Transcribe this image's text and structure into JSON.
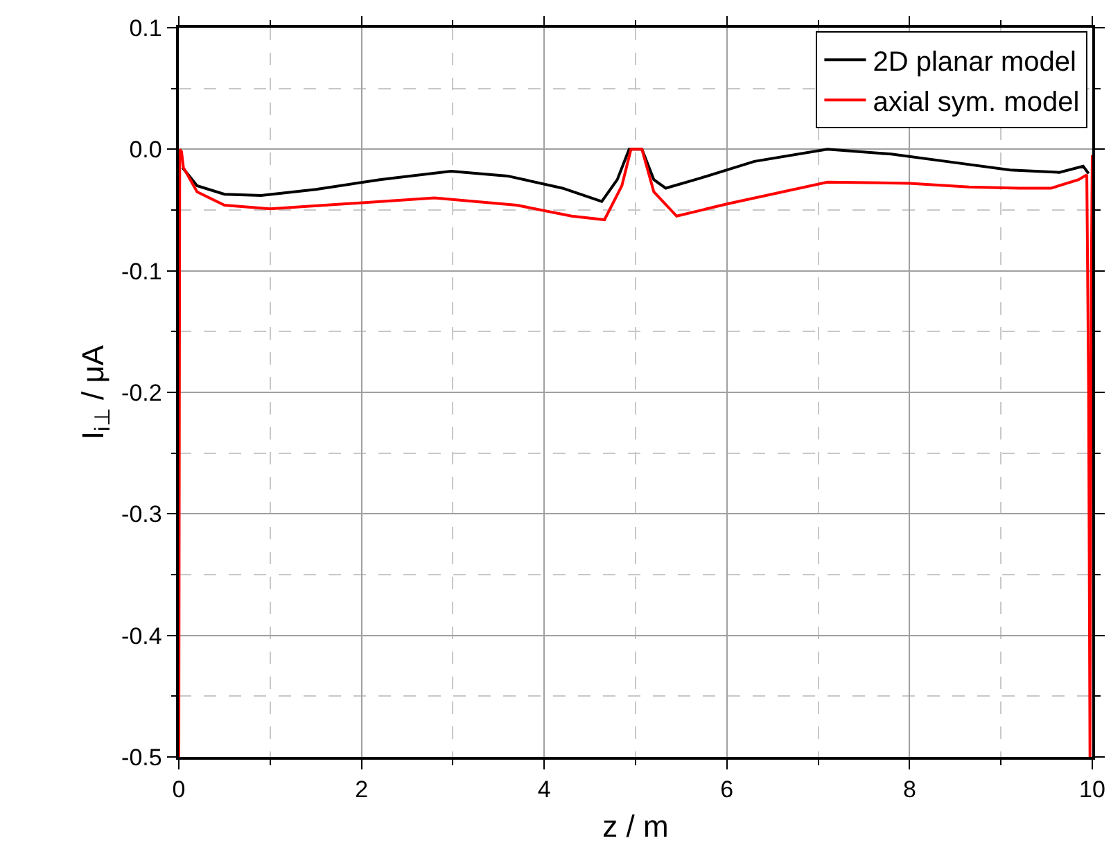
{
  "chart_data": {
    "type": "line",
    "xlabel": "z / m",
    "ylabel": "I$_{i⊥}$ / μA",
    "xlim": [
      0,
      10
    ],
    "xticks": [
      0,
      2,
      4,
      6,
      8,
      10
    ],
    "ylim": [
      -0.5,
      0.1
    ],
    "yticks": [
      {
        "value": -0.5,
        "label": "-0.5"
      },
      {
        "value": -0.4,
        "label": "-0.4"
      },
      {
        "value": -0.3,
        "label": "-0.3"
      },
      {
        "value": -0.2,
        "label": "-0.2"
      },
      {
        "value": -0.1,
        "label": "-0.1"
      },
      {
        "value": 0,
        "label": "0.0"
      },
      {
        "value": 0.1,
        "label": "0.1"
      }
    ],
    "grid": true,
    "legend": "top right",
    "line_style": "solid",
    "marker": "none",
    "series": [
      {
        "name": "2D planar model",
        "color": "#000000",
        "x": [
          0.04,
          0.2,
          0.5,
          0.9,
          1.5,
          2.2,
          2.98,
          3.6,
          4.2,
          4.63,
          4.8,
          4.93,
          5.07,
          5.2,
          5.33,
          5.7,
          6.3,
          7.1,
          7.8,
          8.5,
          9.1,
          9.64,
          9.9,
          9.96
        ],
        "values": [
          -0.015,
          -0.03,
          -0.037,
          -0.038,
          -0.033,
          -0.025,
          -0.018,
          -0.022,
          -0.032,
          -0.043,
          -0.025,
          0,
          0,
          -0.025,
          -0.032,
          -0.024,
          -0.01,
          0,
          -0.004,
          -0.011,
          -0.017,
          -0.019,
          -0.014,
          -0.02
        ]
      },
      {
        "name": "axial sym. model",
        "color": "#ff0000",
        "x": [
          0,
          0.01,
          0.03,
          0.05,
          0.2,
          0.5,
          1,
          1.8,
          2.8,
          3.7,
          4.3,
          4.66,
          4.85,
          4.95,
          5.07,
          5.2,
          5.45,
          6,
          7.1,
          8,
          8.65,
          9.2,
          9.55,
          9.85,
          9.94,
          9.96,
          9.975,
          9.99,
          10
        ],
        "values": [
          -0.5,
          0,
          -0.002,
          -0.015,
          -0.035,
          -0.046,
          -0.049,
          -0.045,
          -0.04,
          -0.046,
          -0.055,
          -0.058,
          -0.03,
          0,
          0,
          -0.035,
          -0.055,
          -0.045,
          -0.027,
          -0.028,
          -0.031,
          -0.032,
          -0.032,
          -0.025,
          -0.021,
          -0.2,
          -0.5,
          -0.1,
          -0.005
        ]
      }
    ]
  }
}
